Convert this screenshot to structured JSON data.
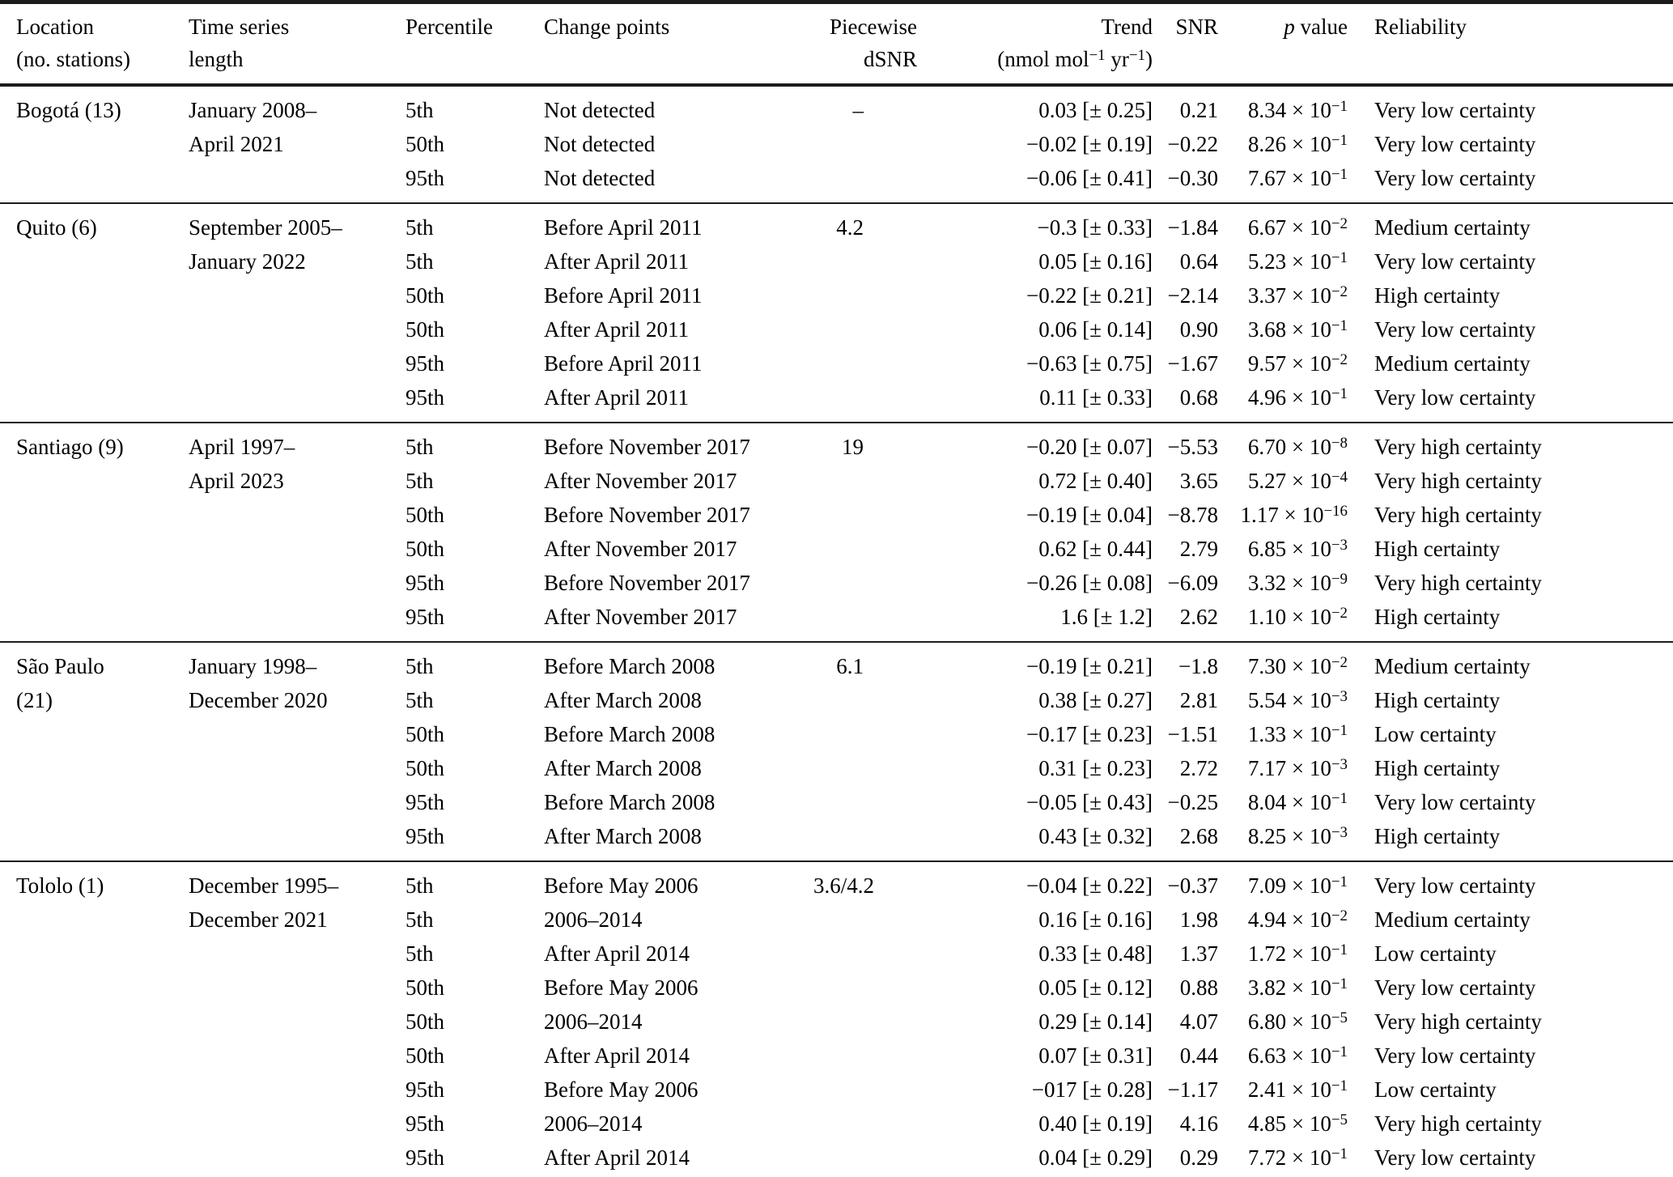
{
  "table": {
    "header": {
      "location_line1": "Location",
      "location_line2": "(no. stations)",
      "time_line1": "Time series",
      "time_line2": "length",
      "percentile": "Percentile",
      "change_points": "Change points",
      "piecewise_line1": "Piecewise",
      "piecewise_line2": "dSNR",
      "trend_label": "Trend",
      "trend_unit_pre": "(nmol mol",
      "trend_unit_sup1": "−1",
      "trend_unit_mid": " yr",
      "trend_unit_sup2": "−1",
      "trend_unit_post": ")",
      "snr": "SNR",
      "p_symbol": "p",
      "p_suffix": " value",
      "reliability": "Reliability"
    },
    "groups": [
      {
        "location_lines": [
          "Bogotá (13)"
        ],
        "period_lines": [
          "January 2008–",
          "April 2021"
        ],
        "rows": [
          {
            "percentile": "5th",
            "change_point": "Not detected",
            "dsnr": "–",
            "trend": "0.03 [± 0.25]",
            "snr": "0.21",
            "p_base": "8.34 × 10",
            "p_exp": "−1",
            "reliability": "Very low certainty"
          },
          {
            "percentile": "50th",
            "change_point": "Not detected",
            "trend": "−0.02 [± 0.19]",
            "snr": "−0.22",
            "p_base": "8.26 × 10",
            "p_exp": "−1",
            "reliability": "Very low certainty"
          },
          {
            "percentile": "95th",
            "change_point": "Not detected",
            "trend": "−0.06 [± 0.41]",
            "snr": "−0.30",
            "p_base": "7.67 × 10",
            "p_exp": "−1",
            "reliability": "Very low certainty"
          }
        ]
      },
      {
        "location_lines": [
          "Quito (6)"
        ],
        "period_lines": [
          "September 2005–",
          "January 2022"
        ],
        "rows": [
          {
            "percentile": "5th",
            "change_point": "Before April 2011",
            "dsnr": "4.2",
            "trend": "−0.3 [± 0.33]",
            "snr": "−1.84",
            "p_base": "6.67 × 10",
            "p_exp": "−2",
            "reliability": "Medium certainty"
          },
          {
            "percentile": "5th",
            "change_point": "After April 2011",
            "trend": "0.05 [± 0.16]",
            "snr": "0.64",
            "p_base": "5.23 × 10",
            "p_exp": "−1",
            "reliability": "Very low certainty"
          },
          {
            "percentile": "50th",
            "change_point": "Before April 2011",
            "trend": "−0.22 [± 0.21]",
            "snr": "−2.14",
            "p_base": "3.37 × 10",
            "p_exp": "−2",
            "reliability": "High certainty"
          },
          {
            "percentile": "50th",
            "change_point": "After April 2011",
            "trend": "0.06 [± 0.14]",
            "snr": "0.90",
            "p_base": "3.68 × 10",
            "p_exp": "−1",
            "reliability": "Very low certainty"
          },
          {
            "percentile": "95th",
            "change_point": "Before April 2011",
            "trend": "−0.63 [± 0.75]",
            "snr": "−1.67",
            "p_base": "9.57 × 10",
            "p_exp": "−2",
            "reliability": "Medium certainty"
          },
          {
            "percentile": "95th",
            "change_point": "After April 2011",
            "trend": "0.11 [± 0.33]",
            "snr": "0.68",
            "p_base": "4.96 × 10",
            "p_exp": "−1",
            "reliability": "Very low certainty"
          }
        ]
      },
      {
        "location_lines": [
          "Santiago (9)"
        ],
        "period_lines": [
          "April 1997–",
          "April 2023"
        ],
        "rows": [
          {
            "percentile": "5th",
            "change_point": "Before November 2017",
            "dsnr": "19",
            "trend": "−0.20 [± 0.07]",
            "snr": "−5.53",
            "p_base": "6.70 × 10",
            "p_exp": "−8",
            "reliability": "Very high certainty"
          },
          {
            "percentile": "5th",
            "change_point": "After November 2017",
            "trend": "0.72 [± 0.40]",
            "snr": "3.65",
            "p_base": "5.27 × 10",
            "p_exp": "−4",
            "reliability": "Very high certainty"
          },
          {
            "percentile": "50th",
            "change_point": "Before November 2017",
            "trend": "−0.19 [± 0.04]",
            "snr": "−8.78",
            "p_base": "1.17 × 10",
            "p_exp": "−16",
            "reliability": "Very high certainty"
          },
          {
            "percentile": "50th",
            "change_point": "After November 2017",
            "trend": "0.62 [± 0.44]",
            "snr": "2.79",
            "p_base": "6.85 × 10",
            "p_exp": "−3",
            "reliability": "High certainty"
          },
          {
            "percentile": "95th",
            "change_point": "Before November 2017",
            "trend": "−0.26 [± 0.08]",
            "snr": "−6.09",
            "p_base": "3.32 × 10",
            "p_exp": "−9",
            "reliability": "Very high certainty"
          },
          {
            "percentile": "95th",
            "change_point": "After November 2017",
            "trend": "1.6 [± 1.2]",
            "snr": "2.62",
            "p_base": "1.10 × 10",
            "p_exp": "−2",
            "reliability": "High certainty"
          }
        ]
      },
      {
        "location_lines": [
          "São Paulo",
          "(21)"
        ],
        "period_lines": [
          "January 1998–",
          "December 2020"
        ],
        "rows": [
          {
            "percentile": "5th",
            "change_point": "Before March 2008",
            "dsnr": "6.1",
            "trend": "−0.19 [± 0.21]",
            "snr": "−1.8",
            "p_base": "7.30 × 10",
            "p_exp": "−2",
            "reliability": "Medium certainty"
          },
          {
            "percentile": "5th",
            "change_point": "After March 2008",
            "trend": "0.38 [± 0.27]",
            "snr": "2.81",
            "p_base": "5.54 × 10",
            "p_exp": "−3",
            "reliability": "High certainty"
          },
          {
            "percentile": "50th",
            "change_point": "Before March 2008",
            "trend": "−0.17 [± 0.23]",
            "snr": "−1.51",
            "p_base": "1.33 × 10",
            "p_exp": "−1",
            "reliability": "Low certainty"
          },
          {
            "percentile": "50th",
            "change_point": "After March 2008",
            "trend": "0.31 [± 0.23]",
            "snr": "2.72",
            "p_base": "7.17 × 10",
            "p_exp": "−3",
            "reliability": "High certainty"
          },
          {
            "percentile": "95th",
            "change_point": "Before March 2008",
            "trend": "−0.05 [± 0.43]",
            "snr": "−0.25",
            "p_base": "8.04 × 10",
            "p_exp": "−1",
            "reliability": "Very low certainty"
          },
          {
            "percentile": "95th",
            "change_point": "After March 2008",
            "trend": "0.43 [± 0.32]",
            "snr": "2.68",
            "p_base": "8.25 × 10",
            "p_exp": "−3",
            "reliability": "High certainty"
          }
        ]
      },
      {
        "location_lines": [
          "Tololo (1)"
        ],
        "period_lines": [
          "December 1995–",
          "December 2021"
        ],
        "rows": [
          {
            "percentile": "5th",
            "change_point": "Before May 2006",
            "dsnr": "3.6/4.2",
            "trend": "−0.04 [± 0.22]",
            "snr": "−0.37",
            "p_base": "7.09 × 10",
            "p_exp": "−1",
            "reliability": "Very low certainty"
          },
          {
            "percentile": "5th",
            "change_point": "2006–2014",
            "trend": "0.16 [± 0.16]",
            "snr": "1.98",
            "p_base": "4.94 × 10",
            "p_exp": "−2",
            "reliability": "Medium certainty"
          },
          {
            "percentile": "5th",
            "change_point": "After April 2014",
            "trend": "0.33 [± 0.48]",
            "snr": "1.37",
            "p_base": "1.72 × 10",
            "p_exp": "−1",
            "reliability": "Low certainty"
          },
          {
            "percentile": "50th",
            "change_point": "Before May 2006",
            "trend": "0.05 [± 0.12]",
            "snr": "0.88",
            "p_base": "3.82 × 10",
            "p_exp": "−1",
            "reliability": "Very low certainty"
          },
          {
            "percentile": "50th",
            "change_point": "2006–2014",
            "trend": "0.29 [± 0.14]",
            "snr": "4.07",
            "p_base": "6.80 × 10",
            "p_exp": "−5",
            "reliability": "Very high certainty"
          },
          {
            "percentile": "50th",
            "change_point": "After April 2014",
            "trend": "0.07 [± 0.31]",
            "snr": "0.44",
            "p_base": "6.63 × 10",
            "p_exp": "−1",
            "reliability": "Very low certainty"
          },
          {
            "percentile": "95th",
            "change_point": "Before May 2006",
            "trend": "−017 [± 0.28]",
            "snr": "−1.17",
            "p_base": "2.41 × 10",
            "p_exp": "−1",
            "reliability": "Low certainty"
          },
          {
            "percentile": "95th",
            "change_point": "2006–2014",
            "trend": "0.40 [± 0.19]",
            "snr": "4.16",
            "p_base": "4.85 × 10",
            "p_exp": "−5",
            "reliability": "Very high certainty"
          },
          {
            "percentile": "95th",
            "change_point": "After April 2014",
            "trend": "0.04 [± 0.29]",
            "snr": "0.29",
            "p_base": "7.72 × 10",
            "p_exp": "−1",
            "reliability": "Very low certainty"
          }
        ]
      }
    ]
  }
}
